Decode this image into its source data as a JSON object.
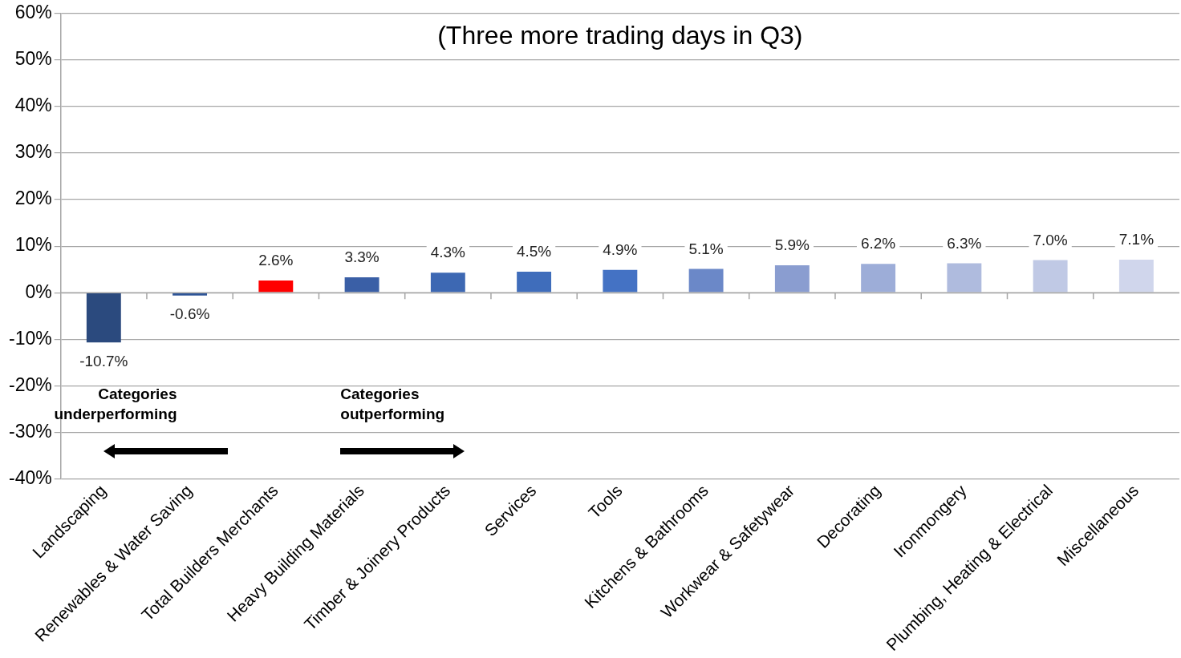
{
  "chart_data": {
    "type": "bar",
    "title": "(Three more trading days in Q3)",
    "categories": [
      "Landscaping",
      "Renewables & Water Saving",
      "Total Builders Merchants",
      "Heavy Building Materials",
      "Timber & Joinery Products",
      "Services",
      "Tools",
      "Kitchens & Bathrooms",
      "Workwear & Safetywear",
      "Decorating",
      "Ironmongery",
      "Plumbing, Heating & Electrical",
      "Miscellaneous"
    ],
    "values": [
      -10.7,
      -0.6,
      2.6,
      3.3,
      4.3,
      4.5,
      4.9,
      5.1,
      5.9,
      6.2,
      6.3,
      7.0,
      7.1
    ],
    "value_labels": [
      "-10.7%",
      "-0.6%",
      "2.6%",
      "3.3%",
      "4.3%",
      "4.5%",
      "4.9%",
      "5.1%",
      "5.9%",
      "6.2%",
      "6.3%",
      "7.0%",
      "7.1%"
    ],
    "colors": [
      "#2b4a7e",
      "#2f5597",
      "#ff0000",
      "#3a5fa6",
      "#3d68b3",
      "#3f6dbb",
      "#4472c4",
      "#6b88c8",
      "#8a9dd0",
      "#9dadd8",
      "#afbbde",
      "#c0c9e5",
      "#d0d6ec"
    ],
    "ylim": [
      -40,
      60
    ],
    "yticks": [
      {
        "value": -40,
        "label": "-40%"
      },
      {
        "value": -30,
        "label": "-30%"
      },
      {
        "value": -20,
        "label": "-20%"
      },
      {
        "value": -10,
        "label": "-10%"
      },
      {
        "value": 0,
        "label": "0%"
      },
      {
        "value": 10,
        "label": "10%"
      },
      {
        "value": 20,
        "label": "20%"
      },
      {
        "value": 30,
        "label": "30%"
      },
      {
        "value": 40,
        "label": "40%"
      },
      {
        "value": 50,
        "label": "50%"
      },
      {
        "value": 60,
        "label": "60%"
      }
    ],
    "grid": "y",
    "legend": false,
    "annotations": [
      "Categories\nunderperforming",
      "Categories\noutperforming"
    ]
  }
}
